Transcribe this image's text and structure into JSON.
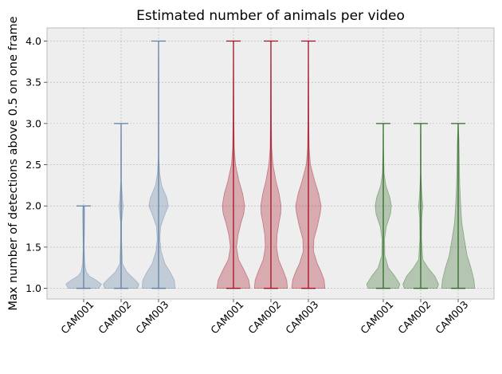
{
  "chart_data": {
    "type": "violin",
    "title": "Estimated number of animals per video",
    "xlabel": "",
    "ylabel": "Max number of detections above 0.5 on one frame",
    "ylim": [
      0.87,
      4.16
    ],
    "yticks": [
      "1.0",
      "1.5",
      "2.0",
      "2.5",
      "3.0",
      "3.5",
      "4.0"
    ],
    "grid": true,
    "groups": [
      {
        "color": "#5e7fa3",
        "violins": [
          {
            "label": "CAM001",
            "min": 1.0,
            "max": 2.0,
            "density": [
              [
                1.0,
                0.6
              ],
              [
                1.05,
                0.7
              ],
              [
                1.1,
                0.48
              ],
              [
                1.15,
                0.22
              ],
              [
                1.2,
                0.1
              ],
              [
                1.3,
                0.04
              ],
              [
                1.5,
                0.02
              ],
              [
                1.7,
                0.03
              ],
              [
                1.9,
                0.04
              ],
              [
                2.0,
                0.03
              ]
            ]
          },
          {
            "label": "CAM002",
            "min": 1.0,
            "max": 3.0,
            "density": [
              [
                1.0,
                0.65
              ],
              [
                1.05,
                0.7
              ],
              [
                1.1,
                0.55
              ],
              [
                1.2,
                0.22
              ],
              [
                1.3,
                0.05
              ],
              [
                1.6,
                0.02
              ],
              [
                1.8,
                0.02
              ],
              [
                1.9,
                0.05
              ],
              [
                2.0,
                0.08
              ],
              [
                2.1,
                0.05
              ],
              [
                2.3,
                0.01
              ],
              [
                2.7,
                0.01
              ],
              [
                3.0,
                0.0
              ]
            ]
          },
          {
            "label": "CAM003",
            "min": 1.0,
            "max": 4.0,
            "density": [
              [
                1.0,
                0.65
              ],
              [
                1.1,
                0.62
              ],
              [
                1.2,
                0.45
              ],
              [
                1.3,
                0.25
              ],
              [
                1.45,
                0.1
              ],
              [
                1.6,
                0.05
              ],
              [
                1.75,
                0.08
              ],
              [
                1.9,
                0.25
              ],
              [
                2.0,
                0.38
              ],
              [
                2.1,
                0.32
              ],
              [
                2.25,
                0.12
              ],
              [
                2.4,
                0.04
              ],
              [
                2.6,
                0.01
              ],
              [
                3.0,
                0.01
              ],
              [
                3.5,
                0.01
              ],
              [
                4.0,
                0.0
              ]
            ]
          }
        ]
      },
      {
        "color": "#a30f22",
        "violins": [
          {
            "label": "CAM001",
            "min": 1.0,
            "max": 4.0,
            "density": [
              [
                1.0,
                0.65
              ],
              [
                1.1,
                0.6
              ],
              [
                1.2,
                0.45
              ],
              [
                1.35,
                0.2
              ],
              [
                1.5,
                0.12
              ],
              [
                1.65,
                0.18
              ],
              [
                1.8,
                0.3
              ],
              [
                1.9,
                0.4
              ],
              [
                2.0,
                0.44
              ],
              [
                2.15,
                0.36
              ],
              [
                2.3,
                0.22
              ],
              [
                2.5,
                0.08
              ],
              [
                2.7,
                0.03
              ],
              [
                3.0,
                0.02
              ],
              [
                3.5,
                0.01
              ],
              [
                4.0,
                0.0
              ]
            ]
          },
          {
            "label": "CAM002",
            "min": 1.0,
            "max": 4.0,
            "density": [
              [
                1.0,
                0.65
              ],
              [
                1.1,
                0.62
              ],
              [
                1.2,
                0.5
              ],
              [
                1.35,
                0.3
              ],
              [
                1.5,
                0.22
              ],
              [
                1.65,
                0.24
              ],
              [
                1.8,
                0.32
              ],
              [
                1.9,
                0.38
              ],
              [
                2.0,
                0.4
              ],
              [
                2.15,
                0.32
              ],
              [
                2.3,
                0.2
              ],
              [
                2.5,
                0.08
              ],
              [
                2.7,
                0.03
              ],
              [
                3.0,
                0.02
              ],
              [
                3.5,
                0.01
              ],
              [
                4.0,
                0.0
              ]
            ]
          },
          {
            "label": "CAM003",
            "min": 1.0,
            "max": 4.0,
            "density": [
              [
                1.0,
                0.65
              ],
              [
                1.1,
                0.62
              ],
              [
                1.2,
                0.5
              ],
              [
                1.3,
                0.35
              ],
              [
                1.45,
                0.2
              ],
              [
                1.6,
                0.22
              ],
              [
                1.75,
                0.35
              ],
              [
                1.9,
                0.46
              ],
              [
                2.0,
                0.5
              ],
              [
                2.15,
                0.4
              ],
              [
                2.3,
                0.25
              ],
              [
                2.5,
                0.08
              ],
              [
                2.7,
                0.03
              ],
              [
                3.0,
                0.02
              ],
              [
                3.5,
                0.01
              ],
              [
                4.0,
                0.0
              ]
            ]
          }
        ]
      },
      {
        "color": "#2f6b26",
        "violins": [
          {
            "label": "CAM001",
            "min": 1.0,
            "max": 3.0,
            "density": [
              [
                1.0,
                0.6
              ],
              [
                1.05,
                0.65
              ],
              [
                1.15,
                0.45
              ],
              [
                1.25,
                0.2
              ],
              [
                1.4,
                0.06
              ],
              [
                1.6,
                0.05
              ],
              [
                1.75,
                0.12
              ],
              [
                1.9,
                0.28
              ],
              [
                2.0,
                0.32
              ],
              [
                2.1,
                0.26
              ],
              [
                2.25,
                0.1
              ],
              [
                2.4,
                0.03
              ],
              [
                2.7,
                0.01
              ],
              [
                3.0,
                0.0
              ]
            ]
          },
          {
            "label": "CAM002",
            "min": 1.0,
            "max": 3.0,
            "density": [
              [
                1.0,
                0.65
              ],
              [
                1.05,
                0.7
              ],
              [
                1.15,
                0.55
              ],
              [
                1.25,
                0.28
              ],
              [
                1.35,
                0.08
              ],
              [
                1.6,
                0.03
              ],
              [
                1.85,
                0.04
              ],
              [
                2.0,
                0.08
              ],
              [
                2.15,
                0.04
              ],
              [
                2.4,
                0.01
              ],
              [
                2.8,
                0.01
              ],
              [
                3.0,
                0.0
              ]
            ]
          },
          {
            "label": "CAM003",
            "min": 1.0,
            "max": 3.0,
            "density": [
              [
                1.0,
                0.65
              ],
              [
                1.1,
                0.62
              ],
              [
                1.25,
                0.5
              ],
              [
                1.4,
                0.35
              ],
              [
                1.6,
                0.24
              ],
              [
                1.8,
                0.14
              ],
              [
                2.0,
                0.1
              ],
              [
                2.2,
                0.07
              ],
              [
                2.4,
                0.05
              ],
              [
                2.6,
                0.04
              ],
              [
                2.8,
                0.03
              ],
              [
                3.0,
                0.0
              ]
            ]
          }
        ]
      }
    ]
  }
}
